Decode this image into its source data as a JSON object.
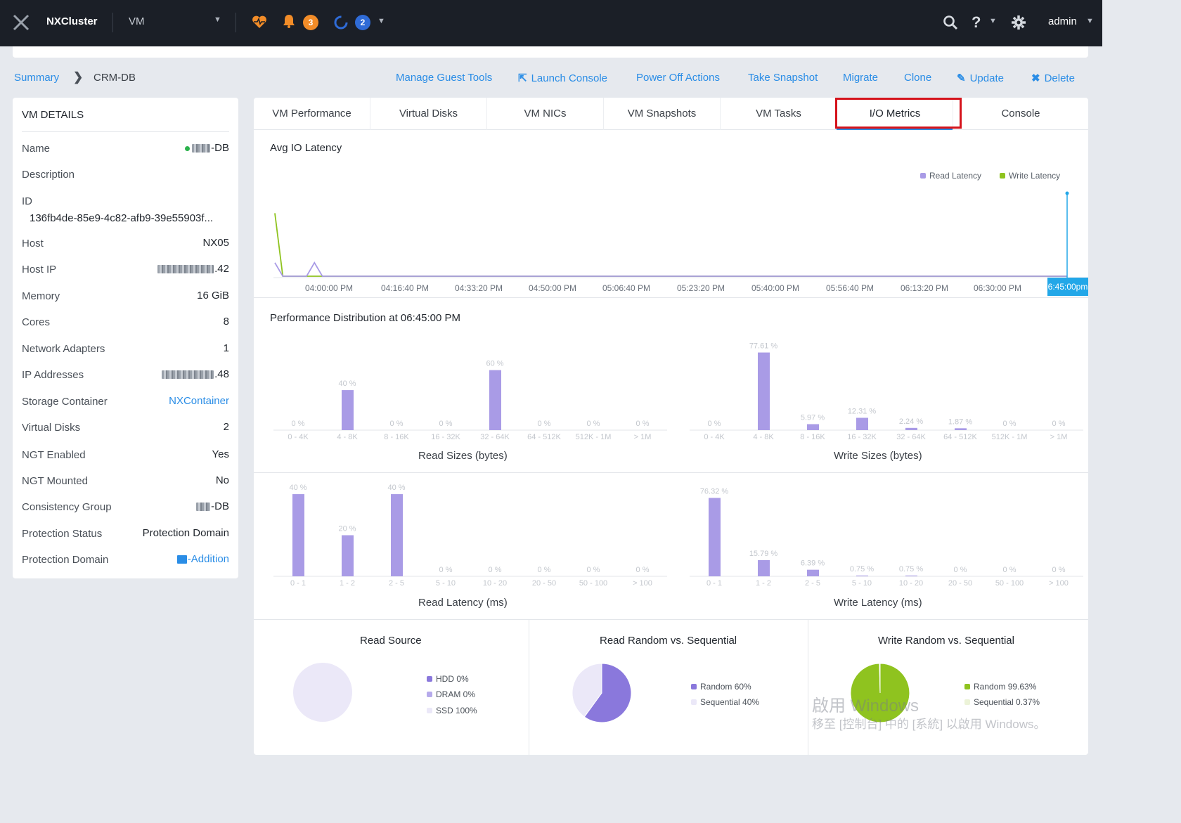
{
  "header": {
    "cluster_name": "NXCluster",
    "view_selector": "VM",
    "alerts_count": "3",
    "tasks_count": "2",
    "user": "admin"
  },
  "breadcrumb": {
    "root": "Summary",
    "current": "CRM-DB"
  },
  "actions": {
    "manage_guest_tools": "Manage Guest Tools",
    "launch_console": "Launch Console",
    "power_off": "Power Off Actions",
    "snapshot": "Take Snapshot",
    "migrate": "Migrate",
    "clone": "Clone",
    "update": "Update",
    "delete": "Delete"
  },
  "vm_details": {
    "title": "VM DETAILS",
    "rows": [
      {
        "label": "Name",
        "value": "-DB"
      },
      {
        "label": "Description",
        "value": ""
      },
      {
        "label": "ID",
        "value": "136fb4de-85e9-4c82-afb9-39e55903f..."
      },
      {
        "label": "Host",
        "value": "NX05"
      },
      {
        "label": "Host IP",
        "value": ".42"
      },
      {
        "label": "Memory",
        "value": "16 GiB"
      },
      {
        "label": "Cores",
        "value": "8"
      },
      {
        "label": "Network Adapters",
        "value": "1"
      },
      {
        "label": "IP Addresses",
        "value": ".48"
      },
      {
        "label": "Storage Container",
        "value": "NXContainer"
      },
      {
        "label": "Virtual Disks",
        "value": "2"
      },
      {
        "label": "NGT Enabled",
        "value": "Yes"
      },
      {
        "label": "NGT Mounted",
        "value": "No"
      },
      {
        "label": "Consistency Group",
        "value": "-DB"
      },
      {
        "label": "Protection Status",
        "value": "Protection Domain"
      },
      {
        "label": "Protection Domain",
        "value": "-Addition"
      }
    ]
  },
  "tabs": [
    "VM Performance",
    "Virtual Disks",
    "VM NICs",
    "VM Snapshots",
    "VM Tasks",
    "I/O Metrics",
    "Console"
  ],
  "active_tab": "I/O Metrics",
  "latency_chart": {
    "title": "Avg IO Latency",
    "legend": [
      "Read Latency",
      "Write Latency"
    ],
    "time_labels": [
      "04:00:00 PM",
      "04:16:40 PM",
      "04:33:20 PM",
      "04:50:00 PM",
      "05:06:40 PM",
      "05:23:20 PM",
      "05:40:00 PM",
      "05:56:40 PM",
      "06:13:20 PM",
      "06:30:00 PM"
    ],
    "cursor_label": "6:45:00pm"
  },
  "distribution": {
    "title": "Performance Distribution at 06:45:00 PM"
  },
  "colors": {
    "read": "#a99be6",
    "write": "#8fc31f",
    "accent": "#2a8de6",
    "topbar": "#1b1f27",
    "highlight": "#d5141c"
  },
  "chart_data": [
    {
      "type": "bar",
      "title": "Read Sizes (bytes)",
      "categories": [
        "0 - 4K",
        "4 - 8K",
        "8 - 16K",
        "16 - 32K",
        "32 - 64K",
        "64 - 512K",
        "512K - 1M",
        "> 1M"
      ],
      "values": [
        0,
        40,
        0,
        0,
        60,
        0,
        0,
        0
      ],
      "labels": [
        "0 %",
        "40 %",
        "0 %",
        "0 %",
        "60 %",
        "0 %",
        "0 %",
        "0 %"
      ]
    },
    {
      "type": "bar",
      "title": "Write Sizes (bytes)",
      "categories": [
        "0 - 4K",
        "4 - 8K",
        "8 - 16K",
        "16 - 32K",
        "32 - 64K",
        "64 - 512K",
        "512K - 1M",
        "> 1M"
      ],
      "values": [
        0,
        77.61,
        5.97,
        12.31,
        2.24,
        1.87,
        0,
        0
      ],
      "labels": [
        "0 %",
        "77.61 %",
        "5.97 %",
        "12.31 %",
        "2.24 %",
        "1.87 %",
        "0 %",
        "0 %"
      ]
    },
    {
      "type": "bar",
      "title": "Read Latency (ms)",
      "categories": [
        "0 - 1",
        "1 - 2",
        "2 - 5",
        "5 - 10",
        "10 - 20",
        "20 - 50",
        "50 - 100",
        "> 100"
      ],
      "values": [
        40,
        20,
        40,
        0,
        0,
        0,
        0,
        0
      ],
      "labels": [
        "40 %",
        "20 %",
        "40 %",
        "0 %",
        "0 %",
        "0 %",
        "0 %",
        "0 %"
      ]
    },
    {
      "type": "bar",
      "title": "Write Latency (ms)",
      "categories": [
        "0 - 1",
        "1 - 2",
        "2 - 5",
        "5 - 10",
        "10 - 20",
        "20 - 50",
        "50 - 100",
        "> 100"
      ],
      "values": [
        76.32,
        15.79,
        6.39,
        0.75,
        0.75,
        0,
        0,
        0
      ],
      "labels": [
        "76.32 %",
        "15.79 %",
        "6.39 %",
        "0.75 %",
        "0.75 %",
        "0 %",
        "0 %",
        "0 %"
      ]
    },
    {
      "type": "line",
      "title": "Avg IO Latency",
      "series": [
        {
          "name": "Read Latency",
          "values": [
            15,
            0,
            0,
            0,
            0,
            15,
            0,
            0,
            0,
            0,
            0,
            0,
            0,
            0,
            0,
            0,
            0,
            0,
            0,
            0,
            0,
            0,
            0,
            0,
            0,
            0,
            0,
            0,
            0,
            0,
            0,
            0,
            0,
            0,
            0,
            0,
            0,
            0,
            0,
            0,
            0,
            0,
            0,
            0,
            0,
            0,
            0,
            0,
            0,
            0,
            0,
            0,
            0,
            0,
            0,
            0,
            0,
            0,
            0,
            0,
            0,
            0,
            0,
            0,
            0,
            0,
            0,
            0,
            0,
            0,
            0,
            0,
            0,
            0,
            0,
            0,
            0,
            0,
            0,
            0,
            0,
            0,
            0,
            0,
            0,
            0,
            0,
            0,
            0,
            0,
            0,
            0,
            0,
            0,
            0,
            0,
            0,
            0,
            0,
            0,
            0
          ]
        },
        {
          "name": "Write Latency",
          "values": [
            70,
            0,
            0,
            0,
            0,
            0,
            0,
            0,
            0,
            0,
            0,
            0,
            0,
            0,
            0,
            0,
            0,
            0,
            0,
            0,
            0,
            0,
            0,
            0,
            0,
            0,
            0,
            0,
            0,
            0,
            0,
            0,
            0,
            0,
            0,
            0,
            0,
            0,
            0,
            0,
            0,
            0,
            0,
            0,
            0,
            0,
            0,
            0,
            0,
            0,
            0,
            0,
            0,
            0,
            0,
            0,
            0,
            0,
            0,
            0,
            0,
            0,
            0,
            0,
            0,
            0,
            0,
            0,
            0,
            0,
            0,
            0,
            0,
            0,
            0,
            0,
            0,
            0,
            0,
            0,
            0,
            0,
            0,
            0,
            0,
            0,
            0,
            0,
            0,
            0,
            0,
            0,
            0,
            0,
            0,
            0,
            0,
            0,
            0,
            0,
            0
          ]
        }
      ]
    },
    {
      "type": "pie",
      "title": "Read Source",
      "labels": [
        "HDD 0%",
        "DRAM 0%",
        "SSD 100%"
      ],
      "values": [
        0,
        0,
        100
      ]
    },
    {
      "type": "pie",
      "title": "Read Random vs. Sequential",
      "labels": [
        "Random 60%",
        "Sequential 40%"
      ],
      "values": [
        60,
        40
      ]
    },
    {
      "type": "pie",
      "title": "Write Random vs. Sequential",
      "labels": [
        "Random 99.63%",
        "Sequential 0.37%"
      ],
      "values": [
        99.63,
        0.37
      ]
    }
  ],
  "watermark": {
    "line1": "啟用 Windows",
    "line2": "移至 [控制台] 中的 [系統] 以啟用 Windows。"
  }
}
